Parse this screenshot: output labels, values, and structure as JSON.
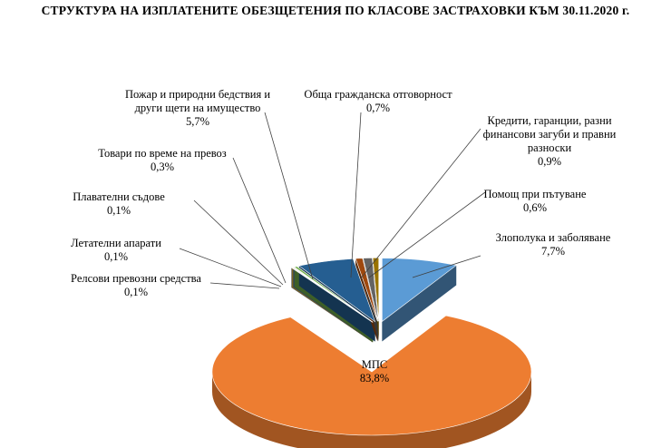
{
  "chart_data": {
    "type": "pie",
    "title": "СТРУКТУРА  НА ИЗПЛАТЕНИТЕ  ОБЕЗЩЕТЕНИЯ  ПО КЛАСОВЕ  ЗАСТРАХОВКИ  КЪМ 30.11.2020 г.",
    "slices": [
      {
        "label": [
          "Злополука и заболяване"
        ],
        "value_text": "7,7%",
        "value": 7.7,
        "color": "#5b9bd5"
      },
      {
        "label": [
          "МПС"
        ],
        "value_text": "83,8%",
        "value": 83.8,
        "color": "#ed7d31"
      },
      {
        "label": [
          "Релсови превозни средства"
        ],
        "value_text": "0,1%",
        "value": 0.1,
        "color": "#a5a5a5"
      },
      {
        "label": [
          "Летателни апарати"
        ],
        "value_text": "0,1%",
        "value": 0.1,
        "color": "#ffc000"
      },
      {
        "label": [
          "Плавателни съдове"
        ],
        "value_text": "0,1%",
        "value": 0.1,
        "color": "#4472c4"
      },
      {
        "label": [
          "Товари по време на превоз"
        ],
        "value_text": "0,3%",
        "value": 0.3,
        "color": "#70ad47"
      },
      {
        "label": [
          "Пожар и природни бедствия и",
          "други щети на имущество"
        ],
        "value_text": "5,7%",
        "value": 5.7,
        "color": "#255e91"
      },
      {
        "label": [
          "Обща гражданска отговорност"
        ],
        "value_text": "0,7%",
        "value": 0.7,
        "color": "#9e480e"
      },
      {
        "label": [
          "Кредити, гаранции,  разни",
          "финансови загуби и правни",
          "разноски"
        ],
        "value_text": "0,9%",
        "value": 0.9,
        "color": "#636363"
      },
      {
        "label": [
          "Помощ при пътуване"
        ],
        "value_text": "0,6%",
        "value": 0.6,
        "color": "#997300"
      }
    ]
  }
}
